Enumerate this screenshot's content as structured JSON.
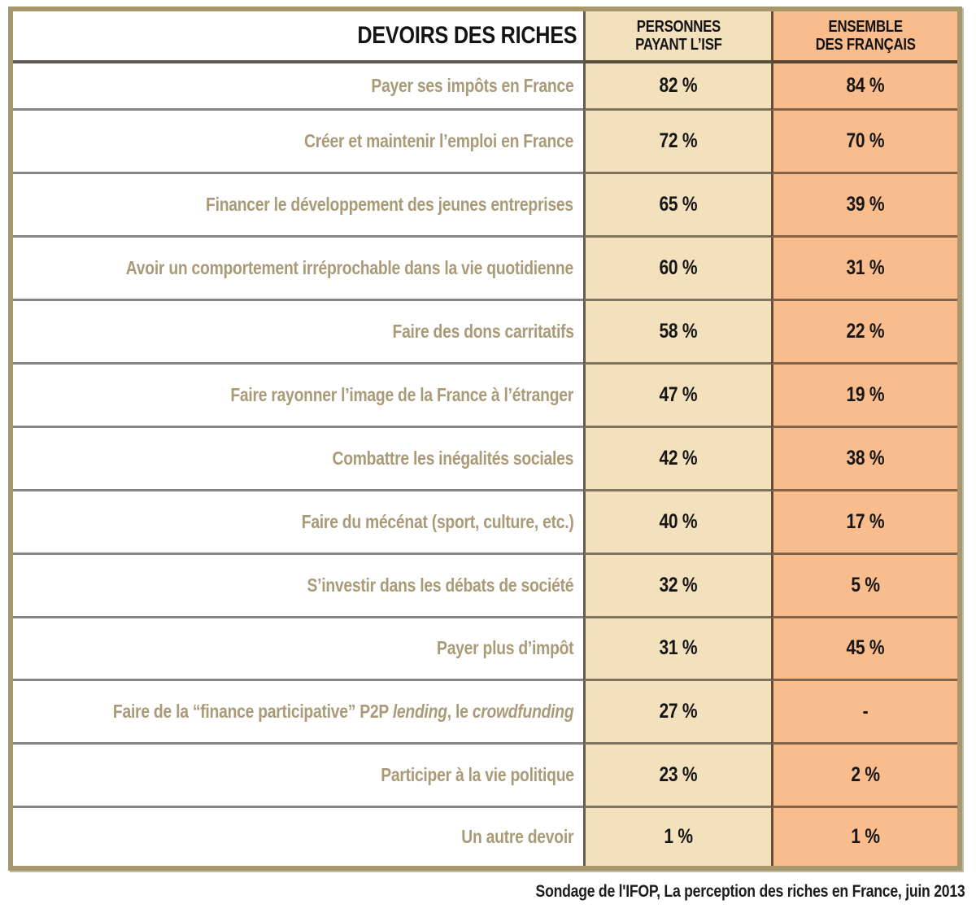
{
  "table": {
    "header": {
      "title": "DEVOIRS DES RICHES",
      "isf_line1": "PERSONNES",
      "isf_line2": "PAYANT L’ISF",
      "ensemble_line1": "ENSEMBLE",
      "ensemble_line2": "DES FRANÇAIS"
    },
    "rows": [
      {
        "label": "Payer ses impôts en France",
        "isf": "82 %",
        "ensemble": "84 %"
      },
      {
        "label": "Créer et maintenir l’emploi en France",
        "isf": "72 %",
        "ensemble": "70 %"
      },
      {
        "label": "Financer le développement des jeunes entreprises",
        "isf": "65 %",
        "ensemble": "39 %"
      },
      {
        "label": "Avoir un comportement irréprochable dans la vie quotidienne",
        "isf": "60 %",
        "ensemble": "31 %"
      },
      {
        "label": "Faire des dons carritatifs",
        "isf": "58 %",
        "ensemble": "22 %"
      },
      {
        "label": "Faire rayonner l’image de la France à l’étranger",
        "isf": "47 %",
        "ensemble": "19 %"
      },
      {
        "label": "Combattre les inégalités sociales",
        "isf": "42 %",
        "ensemble": "38 %"
      },
      {
        "label": "Faire du mécénat (sport, culture, etc.)",
        "isf": "40 %",
        "ensemble": "17 %"
      },
      {
        "label": "S’investir dans les débats de société",
        "isf": "32 %",
        "ensemble": "5 %"
      },
      {
        "label": "Payer plus d’impôt",
        "isf": "31 %",
        "ensemble": "45 %"
      },
      {
        "label_parts": [
          {
            "text": "Faire de la “finance participative” P2P ",
            "italic": false
          },
          {
            "text": "lending",
            "italic": true
          },
          {
            "text": ", le ",
            "italic": false
          },
          {
            "text": "crowdfunding",
            "italic": true
          }
        ],
        "isf": "27 %",
        "ensemble": "-"
      },
      {
        "label": "Participer à la vie politique",
        "isf": "23 %",
        "ensemble": "2 %"
      },
      {
        "label": "Un autre devoir",
        "isf": "1 %",
        "ensemble": "1 %"
      }
    ]
  },
  "footer": {
    "source": "Sondage de l'IFOP, La perception des riches en France, juin 2013"
  },
  "colors": {
    "outer_border": "#a6976c",
    "isf_column_bg": "#f2e1bc",
    "ensemble_column_bg": "#f9bd8d",
    "label_text": "#aa9a78",
    "value_text": "#161616"
  },
  "chart_data": {
    "type": "table",
    "title": "DEVOIRS DES RICHES",
    "categories": [
      "Payer ses impôts en France",
      "Créer et maintenir l’emploi en France",
      "Financer le développement des jeunes entreprises",
      "Avoir un comportement irréprochable dans la vie quotidienne",
      "Faire des dons carritatifs",
      "Faire rayonner l’image de la France à l’étranger",
      "Combattre les inégalités sociales",
      "Faire du mécénat (sport, culture, etc.)",
      "S’investir dans les débats de société",
      "Payer plus d’impôt",
      "Faire de la “finance participative” P2P lending, le crowdfunding",
      "Participer à la vie politique",
      "Un autre devoir"
    ],
    "series": [
      {
        "name": "PERSONNES PAYANT L’ISF",
        "unit": "%",
        "values": [
          82,
          72,
          65,
          60,
          58,
          47,
          42,
          40,
          32,
          31,
          27,
          23,
          1
        ]
      },
      {
        "name": "ENSEMBLE DES FRANÇAIS",
        "unit": "%",
        "values": [
          84,
          70,
          39,
          31,
          22,
          19,
          38,
          17,
          5,
          45,
          null,
          2,
          1
        ]
      }
    ],
    "source": "Sondage de l'IFOP, La perception des riches en France, juin 2013"
  }
}
